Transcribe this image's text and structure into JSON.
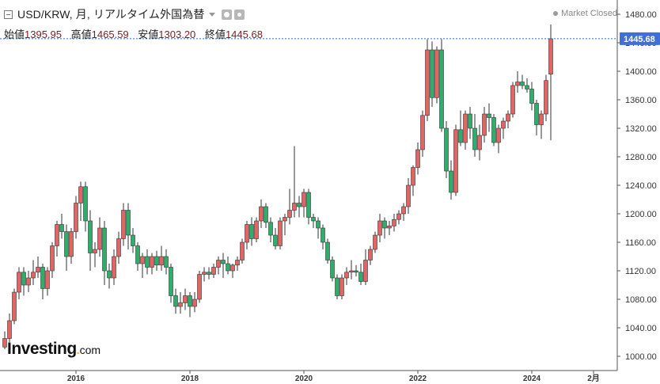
{
  "header": {
    "title": "USD/KRW, 月, リアルタイム外国為替",
    "status": "Market Closed",
    "ohlc": [
      {
        "label": "始値",
        "value": "1395.95"
      },
      {
        "label": "高値",
        "value": "1465.59"
      },
      {
        "label": "安値",
        "value": "1303.20"
      },
      {
        "label": "終値",
        "value": "1445.68"
      }
    ]
  },
  "logo": {
    "main": "Investing",
    "dot": ".",
    "suffix": "com"
  },
  "colors": {
    "up": "#e06666",
    "down": "#2fae6b",
    "price_line": "#3367d6",
    "price_tag": "#3f6fd8"
  },
  "chart_data": {
    "type": "candlestick",
    "title": "USD/KRW, 月, リアルタイム外国為替",
    "ylim": [
      980,
      1500
    ],
    "yticks": [
      1000,
      1040,
      1080,
      1120,
      1160,
      1200,
      1240,
      1280,
      1320,
      1360,
      1400,
      1440,
      1480
    ],
    "ytick_labels": [
      "1000.00",
      "1040.00",
      "1080.00",
      "1120.00",
      "1160.00",
      "1200.00",
      "1240.00",
      "1280.00",
      "1320.00",
      "1360.00",
      "1400.00",
      "1440.00",
      "1480.00"
    ],
    "xticks": [
      {
        "label": "2016",
        "index": 15
      },
      {
        "label": "2018",
        "index": 39
      },
      {
        "label": "2020",
        "index": 63
      },
      {
        "label": "2022",
        "index": 87
      },
      {
        "label": "2024",
        "index": 111
      },
      {
        "label": "2月",
        "index": 124
      }
    ],
    "last_price": 1445.68,
    "last_price_label": "1445.68",
    "grid": false,
    "candles": [
      [
        1013,
        1035,
        1010,
        1025
      ],
      [
        1025,
        1060,
        1020,
        1050
      ],
      [
        1050,
        1095,
        1045,
        1090
      ],
      [
        1090,
        1125,
        1080,
        1118
      ],
      [
        1118,
        1125,
        1085,
        1100
      ],
      [
        1100,
        1120,
        1090,
        1110
      ],
      [
        1110,
        1135,
        1100,
        1118
      ],
      [
        1118,
        1140,
        1110,
        1125
      ],
      [
        1125,
        1130,
        1080,
        1095
      ],
      [
        1095,
        1125,
        1085,
        1120
      ],
      [
        1120,
        1160,
        1110,
        1155
      ],
      [
        1155,
        1190,
        1140,
        1185
      ],
      [
        1185,
        1200,
        1165,
        1175
      ],
      [
        1175,
        1185,
        1120,
        1140
      ],
      [
        1140,
        1180,
        1130,
        1175
      ],
      [
        1175,
        1225,
        1165,
        1215
      ],
      [
        1215,
        1245,
        1190,
        1238
      ],
      [
        1238,
        1245,
        1175,
        1190
      ],
      [
        1190,
        1205,
        1120,
        1145
      ],
      [
        1145,
        1160,
        1125,
        1150
      ],
      [
        1150,
        1195,
        1140,
        1180
      ],
      [
        1180,
        1190,
        1100,
        1120
      ],
      [
        1120,
        1130,
        1095,
        1110
      ],
      [
        1110,
        1150,
        1100,
        1140
      ],
      [
        1140,
        1175,
        1130,
        1165
      ],
      [
        1165,
        1215,
        1155,
        1205
      ],
      [
        1205,
        1215,
        1150,
        1170
      ],
      [
        1170,
        1180,
        1145,
        1155
      ],
      [
        1155,
        1160,
        1120,
        1130
      ],
      [
        1130,
        1145,
        1110,
        1140
      ],
      [
        1140,
        1150,
        1115,
        1125
      ],
      [
        1125,
        1145,
        1115,
        1140
      ],
      [
        1140,
        1148,
        1120,
        1128
      ],
      [
        1128,
        1155,
        1120,
        1140
      ],
      [
        1140,
        1150,
        1115,
        1125
      ],
      [
        1125,
        1130,
        1075,
        1085
      ],
      [
        1085,
        1095,
        1060,
        1070
      ],
      [
        1070,
        1090,
        1060,
        1075
      ],
      [
        1075,
        1095,
        1065,
        1085
      ],
      [
        1085,
        1090,
        1055,
        1070
      ],
      [
        1070,
        1090,
        1062,
        1080
      ],
      [
        1080,
        1120,
        1075,
        1115
      ],
      [
        1115,
        1125,
        1105,
        1118
      ],
      [
        1118,
        1125,
        1108,
        1115
      ],
      [
        1115,
        1130,
        1110,
        1125
      ],
      [
        1125,
        1140,
        1115,
        1135
      ],
      [
        1135,
        1145,
        1110,
        1130
      ],
      [
        1130,
        1140,
        1115,
        1120
      ],
      [
        1120,
        1130,
        1110,
        1128
      ],
      [
        1128,
        1140,
        1120,
        1135
      ],
      [
        1135,
        1165,
        1130,
        1160
      ],
      [
        1160,
        1190,
        1150,
        1185
      ],
      [
        1185,
        1195,
        1155,
        1165
      ],
      [
        1165,
        1195,
        1160,
        1190
      ],
      [
        1190,
        1220,
        1180,
        1210
      ],
      [
        1210,
        1215,
        1180,
        1188
      ],
      [
        1188,
        1195,
        1160,
        1170
      ],
      [
        1170,
        1180,
        1150,
        1155
      ],
      [
        1155,
        1195,
        1150,
        1190
      ],
      [
        1190,
        1200,
        1170,
        1195
      ],
      [
        1195,
        1235,
        1185,
        1205
      ],
      [
        1205,
        1295,
        1195,
        1215
      ],
      [
        1215,
        1225,
        1195,
        1210
      ],
      [
        1210,
        1235,
        1195,
        1230
      ],
      [
        1230,
        1235,
        1185,
        1195
      ],
      [
        1195,
        1200,
        1180,
        1190
      ],
      [
        1190,
        1195,
        1165,
        1180
      ],
      [
        1180,
        1185,
        1150,
        1160
      ],
      [
        1160,
        1165,
        1130,
        1135
      ],
      [
        1135,
        1140,
        1105,
        1110
      ],
      [
        1110,
        1115,
        1080,
        1085
      ],
      [
        1085,
        1115,
        1080,
        1110
      ],
      [
        1110,
        1125,
        1100,
        1118
      ],
      [
        1118,
        1135,
        1108,
        1120
      ],
      [
        1120,
        1128,
        1112,
        1118
      ],
      [
        1118,
        1130,
        1100,
        1105
      ],
      [
        1105,
        1150,
        1100,
        1135
      ],
      [
        1135,
        1155,
        1128,
        1150
      ],
      [
        1150,
        1175,
        1145,
        1170
      ],
      [
        1170,
        1200,
        1160,
        1190
      ],
      [
        1190,
        1195,
        1165,
        1180
      ],
      [
        1180,
        1190,
        1170,
        1183
      ],
      [
        1183,
        1200,
        1175,
        1192
      ],
      [
        1192,
        1205,
        1185,
        1200
      ],
      [
        1200,
        1215,
        1190,
        1210
      ],
      [
        1210,
        1250,
        1200,
        1240
      ],
      [
        1240,
        1268,
        1225,
        1265
      ],
      [
        1265,
        1300,
        1255,
        1290
      ],
      [
        1290,
        1345,
        1280,
        1338
      ],
      [
        1338,
        1445,
        1330,
        1430
      ],
      [
        1430,
        1442,
        1350,
        1363
      ],
      [
        1363,
        1435,
        1355,
        1430
      ],
      [
        1430,
        1445,
        1315,
        1320
      ],
      [
        1320,
        1330,
        1250,
        1260
      ],
      [
        1260,
        1275,
        1220,
        1230
      ],
      [
        1230,
        1325,
        1225,
        1318
      ],
      [
        1318,
        1345,
        1295,
        1300
      ],
      [
        1300,
        1345,
        1290,
        1340
      ],
      [
        1340,
        1350,
        1305,
        1320
      ],
      [
        1320,
        1340,
        1280,
        1290
      ],
      [
        1290,
        1325,
        1275,
        1310
      ],
      [
        1310,
        1350,
        1300,
        1340
      ],
      [
        1340,
        1355,
        1315,
        1335
      ],
      [
        1335,
        1340,
        1295,
        1300
      ],
      [
        1300,
        1325,
        1285,
        1320
      ],
      [
        1320,
        1335,
        1305,
        1330
      ],
      [
        1330,
        1345,
        1320,
        1340
      ],
      [
        1340,
        1385,
        1335,
        1380
      ],
      [
        1380,
        1400,
        1370,
        1385
      ],
      [
        1385,
        1395,
        1375,
        1380
      ],
      [
        1380,
        1390,
        1370,
        1375
      ],
      [
        1375,
        1385,
        1345,
        1355
      ],
      [
        1355,
        1360,
        1310,
        1325
      ],
      [
        1325,
        1345,
        1305,
        1340
      ],
      [
        1340,
        1395,
        1330,
        1387
      ],
      [
        1395.95,
        1465.59,
        1303.2,
        1445.68
      ]
    ]
  }
}
